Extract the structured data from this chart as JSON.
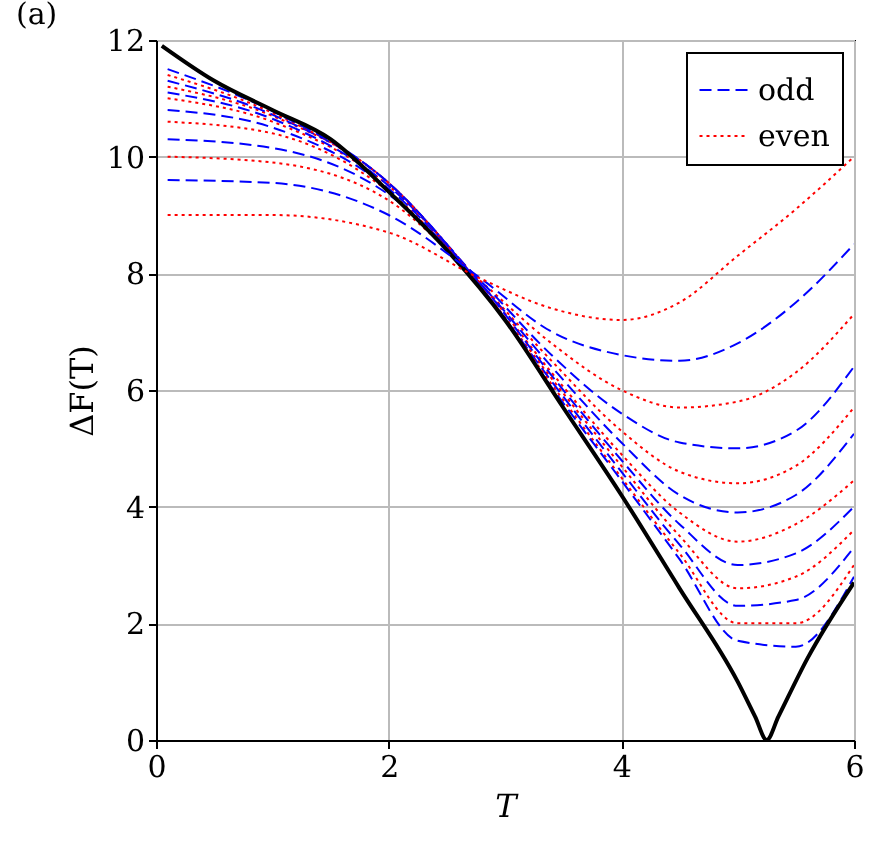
{
  "chart_data": {
    "type": "line",
    "title": "(a)",
    "xlabel": "T",
    "ylabel": "ΔF(T)",
    "x": [
      0.1,
      1,
      2,
      2.8,
      3.4,
      4,
      4.5,
      5,
      5.5,
      6
    ],
    "xlim": [
      0,
      6
    ],
    "xticks": [
      0,
      2,
      4,
      6
    ],
    "ylim": [
      0,
      12
    ],
    "yticks": [
      0,
      2,
      4,
      6,
      8,
      10,
      12
    ],
    "grid": true,
    "legend": "top right",
    "series": [
      {
        "name": "odd",
        "color": "#0000ff",
        "line_style": "dashed",
        "values": [
          9.6,
          9.55,
          9.0,
          7.9,
          7.0,
          6.6,
          6.5,
          6.8,
          7.5,
          8.5
        ]
      },
      {
        "name": "even",
        "color": "#ff0000",
        "line_style": "dotted",
        "values": [
          9.0,
          9.0,
          8.7,
          7.9,
          7.4,
          7.2,
          7.5,
          8.3,
          9.1,
          10.0
        ]
      },
      {
        "color": "#ff0000",
        "line_style": "dotted",
        "values": [
          10.0,
          9.9,
          9.25,
          7.85,
          6.8,
          6.0,
          5.7,
          5.8,
          6.3,
          7.3
        ]
      },
      {
        "color": "#0000ff",
        "line_style": "dashed",
        "values": [
          10.3,
          10.15,
          9.35,
          7.85,
          6.6,
          5.6,
          5.1,
          5.0,
          5.3,
          6.4
        ]
      },
      {
        "color": "#ff0000",
        "line_style": "dotted",
        "values": [
          10.6,
          10.4,
          9.4,
          7.8,
          6.5,
          5.3,
          4.6,
          4.4,
          4.7,
          5.7
        ]
      },
      {
        "color": "#0000ff",
        "line_style": "dashed",
        "values": [
          10.8,
          10.5,
          9.45,
          7.8,
          6.4,
          5.1,
          4.2,
          3.9,
          4.2,
          5.25
        ]
      },
      {
        "color": "#ff0000",
        "line_style": "dotted",
        "values": [
          11.0,
          10.6,
          9.5,
          7.8,
          6.3,
          4.9,
          3.9,
          3.4,
          3.7,
          4.45
        ]
      },
      {
        "color": "#0000ff",
        "line_style": "dashed",
        "values": [
          11.1,
          10.65,
          9.5,
          7.8,
          6.25,
          4.8,
          3.7,
          3.0,
          3.2,
          4.0
        ]
      },
      {
        "color": "#ff0000",
        "line_style": "dotted",
        "values": [
          11.2,
          10.7,
          9.55,
          7.75,
          6.2,
          4.7,
          3.5,
          2.6,
          2.8,
          3.6
        ]
      },
      {
        "color": "#0000ff",
        "line_style": "dashed",
        "values": [
          11.3,
          10.72,
          9.55,
          7.75,
          6.15,
          4.6,
          3.35,
          2.3,
          2.4,
          3.3
        ]
      },
      {
        "color": "#ff0000",
        "line_style": "dotted",
        "values": [
          11.4,
          10.75,
          9.55,
          7.75,
          6.1,
          4.5,
          3.2,
          2.0,
          2.0,
          3.0
        ]
      },
      {
        "color": "#0000ff",
        "line_style": "dashed",
        "values": [
          11.5,
          10.78,
          9.55,
          7.75,
          6.05,
          4.45,
          3.1,
          1.7,
          1.6,
          2.8
        ]
      },
      {
        "color": "#000000",
        "line_style": "solid",
        "x": [
          0.05,
          0.5,
          1,
          1.5,
          2,
          2.5,
          3,
          3.5,
          4,
          4.5,
          5,
          5.15,
          5.25,
          5.35,
          5.6,
          6
        ],
        "values": [
          11.9,
          11.3,
          10.8,
          10.3,
          9.4,
          8.4,
          7.2,
          5.7,
          4.2,
          2.6,
          1.0,
          0.4,
          0,
          0.4,
          1.4,
          2.7
        ]
      }
    ]
  }
}
